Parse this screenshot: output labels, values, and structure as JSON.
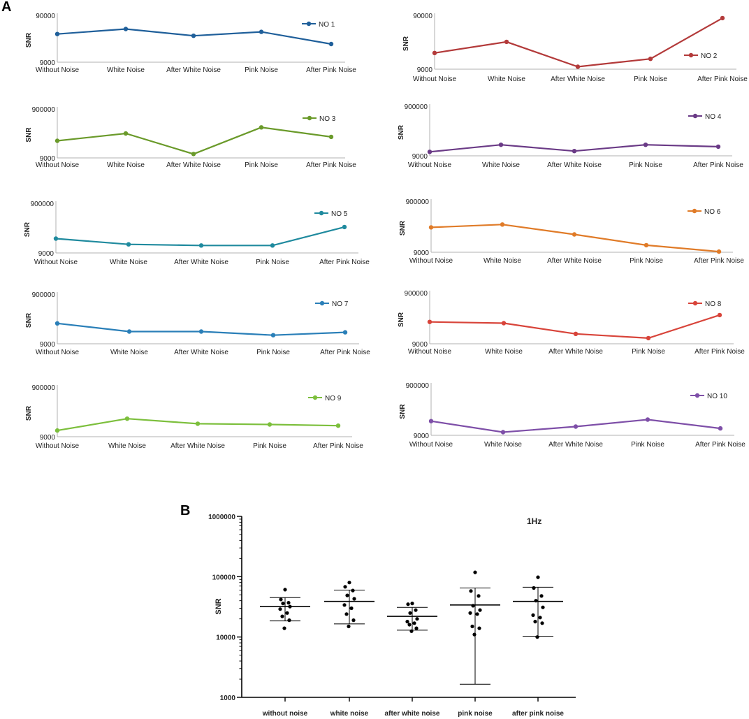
{
  "figure": {
    "panel_a_label": "A",
    "panel_b_label": "B"
  },
  "chart_data": [
    {
      "type": "line",
      "series_name": "NO 1",
      "color": "#1f5f9a",
      "ylabel": "SNR",
      "ytick_labels": [
        "9000",
        "90000"
      ],
      "ylim": [
        9000,
        90000
      ],
      "scale": "log",
      "categories": [
        "Without Noise",
        "White Noise",
        "After White Noise",
        "Pink Noise",
        "After Pink Noise"
      ],
      "values": [
        36000,
        46000,
        33000,
        40000,
        22000
      ]
    },
    {
      "type": "line",
      "series_name": "NO 2",
      "color": "#b33a3a",
      "ylabel": "SNR",
      "ytick_labels": [
        "9000",
        "90000"
      ],
      "ylim": [
        9000,
        90000
      ],
      "scale": "log",
      "categories": [
        "Without Noise",
        "White Noise",
        "After White Noise",
        "Pink Noise",
        "After Pink Noise"
      ],
      "values": [
        18000,
        29000,
        10000,
        14000,
        80000
      ]
    },
    {
      "type": "line",
      "series_name": "NO 3",
      "color": "#6a9a2a",
      "ylabel": "SNR",
      "ytick_labels": [
        "9000",
        "900000"
      ],
      "ylim": [
        9000,
        900000
      ],
      "scale": "log",
      "categories": [
        "Without Noise",
        "White Noise",
        "After White Noise",
        "Pink Noise",
        "After Pink Noise"
      ],
      "values": [
        45000,
        90000,
        13000,
        160000,
        65000
      ]
    },
    {
      "type": "line",
      "series_name": "NO 4",
      "color": "#6a3a86",
      "ylabel": "SNR",
      "ytick_labels": [
        "9000",
        "900000"
      ],
      "ylim": [
        9000,
        900000
      ],
      "scale": "log",
      "categories": [
        "Without Noise",
        "White Noise",
        "After White Noise",
        "Pink Noise",
        "After Pink Noise"
      ],
      "values": [
        13000,
        25000,
        14000,
        25000,
        21000
      ]
    },
    {
      "type": "line",
      "series_name": "NO 5",
      "color": "#1f8a9e",
      "ylabel": "SNR",
      "ytick_labels": [
        "9000",
        "900000"
      ],
      "ylim": [
        9000,
        900000
      ],
      "scale": "log",
      "categories": [
        "Without Noise",
        "White Noise",
        "After White Noise",
        "Pink Noise",
        "After Pink Noise"
      ],
      "values": [
        34000,
        20000,
        18000,
        18000,
        100000
      ]
    },
    {
      "type": "line",
      "series_name": "NO 6",
      "color": "#e07b28",
      "ylabel": "SNR",
      "ytick_labels": [
        "9000",
        "900000"
      ],
      "ylim": [
        9000,
        900000
      ],
      "scale": "log",
      "categories": [
        "Without Noise",
        "White Noise",
        "After White Noise",
        "Pink Noise",
        "After Pink Noise"
      ],
      "values": [
        85000,
        110000,
        45000,
        17000,
        9500
      ]
    },
    {
      "type": "line",
      "series_name": "NO 7",
      "color": "#2a7fb8",
      "ylabel": "SNR",
      "ytick_labels": [
        "9000",
        "900000"
      ],
      "ylim": [
        9000,
        900000
      ],
      "scale": "log",
      "categories": [
        "Without Noise",
        "White Noise",
        "After White Noise",
        "Pink Noise",
        "After Pink Noise"
      ],
      "values": [
        60000,
        28000,
        28000,
        20000,
        26000
      ]
    },
    {
      "type": "line",
      "series_name": "NO 8",
      "color": "#d8443a",
      "ylabel": "SNR",
      "ytick_labels": [
        "9000",
        "900000"
      ],
      "ylim": [
        9000,
        900000
      ],
      "scale": "log",
      "categories": [
        "Without Noise",
        "White Noise",
        "After White Noise",
        "Pink Noise",
        "After Pink Noise"
      ],
      "values": [
        65000,
        58000,
        22000,
        15000,
        120000
      ]
    },
    {
      "type": "line",
      "series_name": "NO 9",
      "color": "#7cbf3c",
      "ylabel": "SNR",
      "ytick_labels": [
        "9000",
        "900000"
      ],
      "ylim": [
        9000,
        900000
      ],
      "scale": "log",
      "categories": [
        "Without Noise",
        "White Noise",
        "After White Noise",
        "Pink Noise",
        "After Pink Noise"
      ],
      "values": [
        16000,
        48000,
        30000,
        28000,
        25000
      ]
    },
    {
      "type": "line",
      "series_name": "NO 10",
      "color": "#7e4fa8",
      "ylabel": "SNR",
      "ytick_labels": [
        "9000",
        "900000"
      ],
      "ylim": [
        9000,
        900000
      ],
      "scale": "log",
      "categories": [
        "Without Noise",
        "White Noise",
        "After White Noise",
        "Pink Noise",
        "After Pink Noise"
      ],
      "values": [
        33000,
        12000,
        20000,
        38000,
        17000
      ]
    },
    {
      "type": "scatter",
      "title": "1Hz",
      "ylabel": "SNR",
      "scale": "log",
      "ylim": [
        1000,
        1000000
      ],
      "ytick_labels": [
        "1000",
        "10000",
        "100000",
        "1000000"
      ],
      "categories": [
        "without noise",
        "white noise",
        "after white noise",
        "pink noise",
        "after pink noise"
      ],
      "points": [
        [
          61000,
          42000,
          37000,
          36000,
          32000,
          29000,
          25000,
          22000,
          19000,
          14000
        ],
        [
          80000,
          68000,
          59000,
          49000,
          43000,
          34000,
          30000,
          24000,
          19000,
          15000
        ],
        [
          36000,
          35000,
          28000,
          25000,
          20000,
          18000,
          17000,
          16000,
          14000,
          12500
        ],
        [
          118000,
          58000,
          48000,
          33000,
          28000,
          25000,
          24000,
          15000,
          14000,
          11000
        ],
        [
          98000,
          65000,
          48000,
          40000,
          31000,
          23000,
          21000,
          18000,
          17000,
          10000
        ]
      ],
      "mean": [
        32000,
        39000,
        22000,
        34000,
        39000
      ],
      "error_upper": [
        45000,
        60000,
        31000,
        65000,
        67000
      ],
      "error_lower": [
        18500,
        16500,
        13000,
        1650,
        10300
      ]
    }
  ]
}
